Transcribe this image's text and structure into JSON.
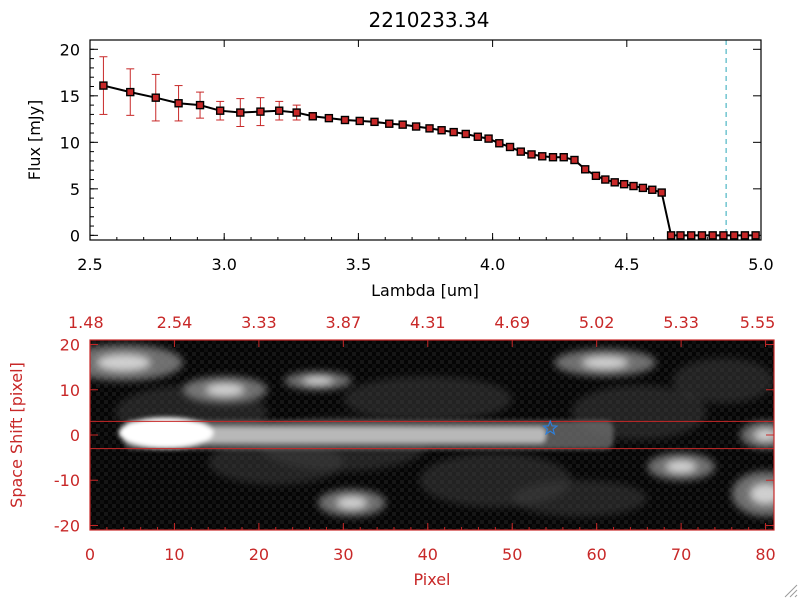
{
  "chart_data": [
    {
      "type": "line",
      "title": "2210233.34",
      "xlabel": "Lambda [um]",
      "ylabel": "Flux [mJy]",
      "xlim": [
        2.5,
        5.0
      ],
      "ylim": [
        -0.5,
        21
      ],
      "xticks": [
        "2.5",
        "3.0",
        "3.5",
        "4.0",
        "4.5",
        "5.0"
      ],
      "yticks": [
        "0",
        "5",
        "10",
        "15",
        "20"
      ],
      "series_color": "#000000",
      "marker_color": "#c82828",
      "errorbar_color": "#c82828",
      "vline": {
        "x": 4.87,
        "color": "#2aa7b8",
        "style": "dashed"
      },
      "x": [
        2.55,
        2.65,
        2.745,
        2.83,
        2.91,
        2.985,
        3.06,
        3.135,
        3.205,
        3.27,
        3.33,
        3.39,
        3.45,
        3.505,
        3.56,
        3.615,
        3.665,
        3.715,
        3.765,
        3.81,
        3.855,
        3.9,
        3.945,
        3.985,
        4.025,
        4.065,
        4.105,
        4.145,
        4.185,
        4.225,
        4.265,
        4.305,
        4.345,
        4.385,
        4.42,
        4.455,
        4.49,
        4.525,
        4.56,
        4.595,
        4.63,
        4.665,
        4.7,
        4.74,
        4.78,
        4.82,
        4.86,
        4.9,
        4.94,
        4.98
      ],
      "y": [
        16.1,
        15.4,
        14.8,
        14.2,
        14.0,
        13.4,
        13.2,
        13.3,
        13.4,
        13.2,
        12.8,
        12.6,
        12.4,
        12.3,
        12.2,
        12.0,
        11.9,
        11.7,
        11.5,
        11.3,
        11.1,
        10.9,
        10.6,
        10.4,
        9.9,
        9.5,
        9.0,
        8.7,
        8.5,
        8.4,
        8.4,
        8.1,
        7.1,
        6.4,
        6.0,
        5.7,
        5.5,
        5.3,
        5.1,
        4.9,
        4.6,
        0,
        0,
        0,
        0,
        0,
        0,
        0,
        0,
        0
      ],
      "yerr": [
        3.1,
        2.5,
        2.5,
        1.9,
        1.4,
        1.0,
        1.5,
        1.5,
        1.0,
        0.8,
        0.4,
        0.3,
        0.3,
        0.3,
        0.3,
        0.3,
        0.3,
        0.3,
        0.3,
        0.3,
        0.3,
        0.3,
        0.3,
        0.3,
        0.3,
        0.3,
        0.3,
        0.3,
        0.3,
        0.3,
        0.3,
        0.3,
        0.3,
        0.3,
        0.3,
        0.3,
        0.3,
        0.3,
        0.3,
        0.3,
        0.3,
        0,
        0,
        0,
        0,
        0,
        0,
        0,
        0,
        0
      ]
    },
    {
      "type": "heatmap",
      "xlabel": "Pixel",
      "ylabel": "Space Shift [pixel]",
      "xlim": [
        0,
        81
      ],
      "ylim": [
        -21,
        21
      ],
      "xticks": [
        "0",
        "10",
        "20",
        "30",
        "40",
        "50",
        "60",
        "70",
        "80"
      ],
      "yticks": [
        "-20",
        "-10",
        "0",
        "10",
        "20"
      ],
      "top_axis_ticks": [
        "1.48",
        "2.54",
        "3.33",
        "3.87",
        "4.31",
        "4.69",
        "5.02",
        "5.33",
        "5.55"
      ],
      "axis_color": "#c82828",
      "colormap": "grayscale",
      "aperture_lines": [
        3,
        -3
      ],
      "source_marker": {
        "x": 54.5,
        "y": 1.5,
        "shape": "star",
        "color": "#2f7fd8"
      },
      "trace": {
        "x_start": 4,
        "x_end": 62,
        "y": 0,
        "peak_x": 8,
        "peak_width": 8
      },
      "blobs": [
        {
          "x": 61,
          "y": 16,
          "w": 6,
          "h": 3
        },
        {
          "x": 80,
          "y": -13,
          "w": 4,
          "h": 5
        },
        {
          "x": 80,
          "y": 0,
          "w": 3,
          "h": 3
        },
        {
          "x": 4,
          "y": 16,
          "w": 7,
          "h": 4
        },
        {
          "x": 16,
          "y": 10,
          "w": 5,
          "h": 3
        },
        {
          "x": 31,
          "y": -15,
          "w": 4,
          "h": 3
        },
        {
          "x": 27,
          "y": 12,
          "w": 4,
          "h": 2
        },
        {
          "x": 70,
          "y": -7,
          "w": 4,
          "h": 3
        }
      ]
    }
  ]
}
